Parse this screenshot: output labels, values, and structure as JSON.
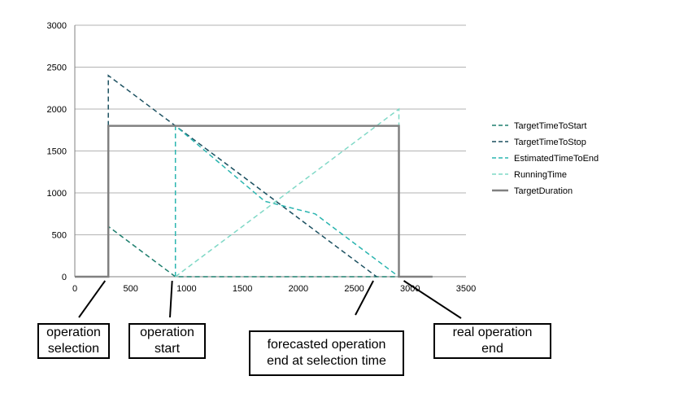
{
  "chart_data": {
    "type": "line",
    "xlim": [
      0,
      3500
    ],
    "ylim": [
      0,
      3000
    ],
    "x_ticks": [
      0,
      500,
      1000,
      1500,
      2000,
      2500,
      3000,
      3500
    ],
    "y_ticks": [
      0,
      500,
      1000,
      1500,
      2000,
      2500,
      3000
    ],
    "grid": "horizontal",
    "legend_position": "right",
    "series": [
      {
        "name": "TargetTimeToStart",
        "color": "#1e7f6e",
        "dash": "dashed",
        "points": [
          [
            0,
            0
          ],
          [
            300,
            0
          ],
          [
            300,
            600
          ],
          [
            900,
            0
          ],
          [
            3200,
            0
          ]
        ]
      },
      {
        "name": "TargetTimeToStop",
        "color": "#1a4f5f",
        "dash": "dashed",
        "points": [
          [
            300,
            1800
          ],
          [
            300,
            2400
          ],
          [
            2700,
            0
          ]
        ]
      },
      {
        "name": "EstimatedTimeToEnd",
        "color": "#2bb5b0",
        "dash": "dashed",
        "points": [
          [
            900,
            0
          ],
          [
            900,
            1800
          ],
          [
            1700,
            900
          ],
          [
            2150,
            750
          ],
          [
            2900,
            0
          ]
        ]
      },
      {
        "name": "RunningTime",
        "color": "#7fd8c6",
        "dash": "dashed",
        "points": [
          [
            900,
            0
          ],
          [
            2900,
            2000
          ],
          [
            2900,
            1800
          ]
        ]
      },
      {
        "name": "TargetDuration",
        "color": "#808080",
        "dash": "solid",
        "points": [
          [
            0,
            0
          ],
          [
            300,
            0
          ],
          [
            300,
            1800
          ],
          [
            2900,
            1800
          ],
          [
            2900,
            0
          ],
          [
            3200,
            0
          ]
        ]
      }
    ]
  },
  "callouts": [
    {
      "text": "operation\nselection"
    },
    {
      "text": "operation\nstart"
    },
    {
      "text": "forecasted operation\nend at selection time"
    },
    {
      "text": "real operation\nend"
    }
  ]
}
